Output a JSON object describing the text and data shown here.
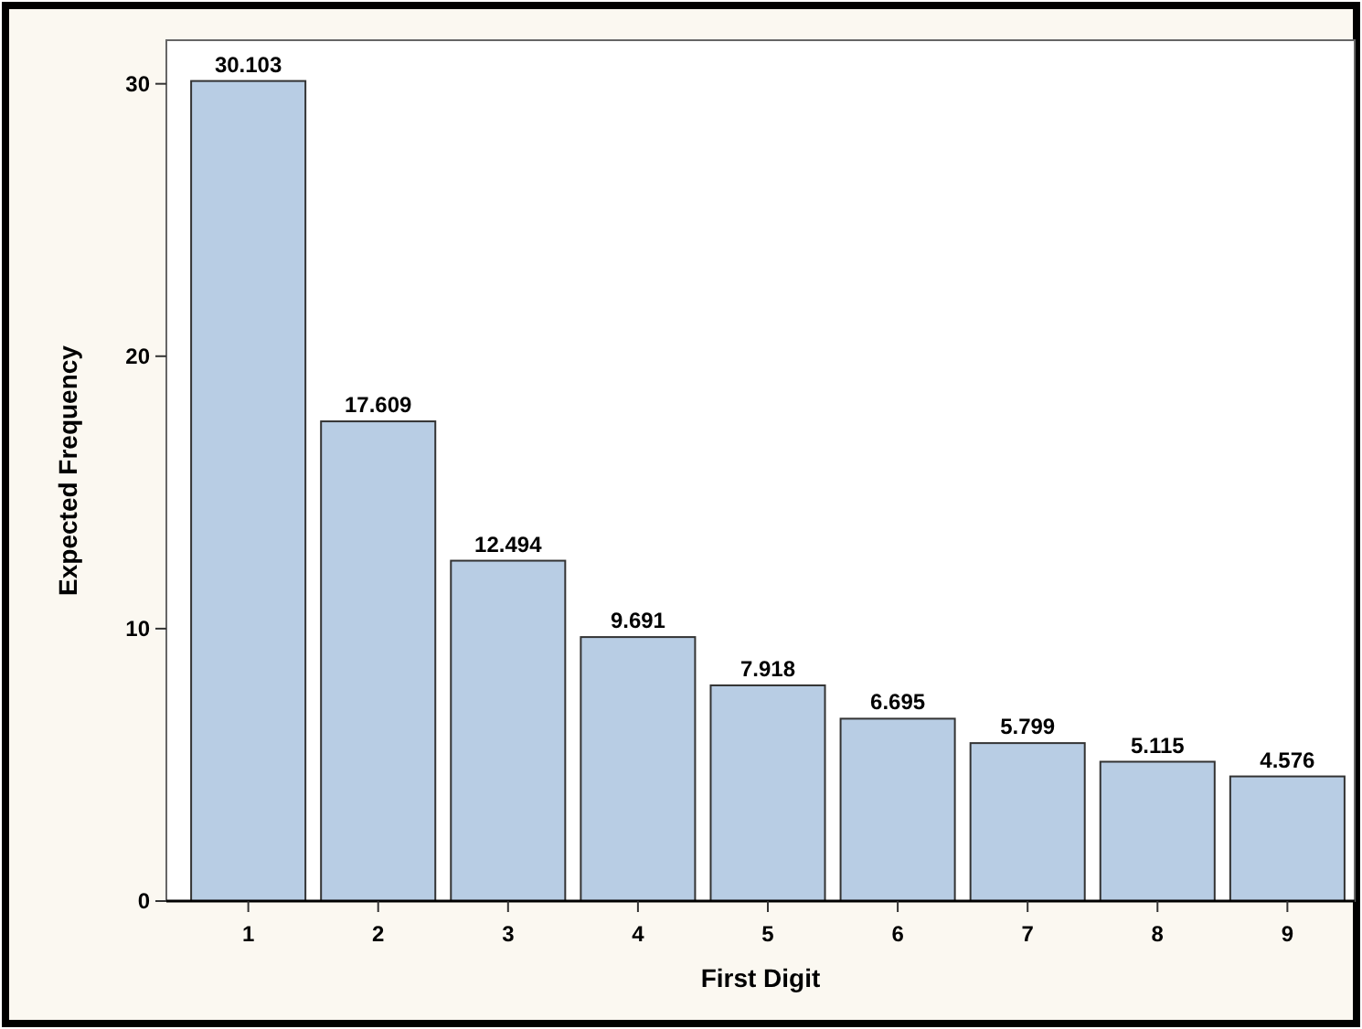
{
  "chart_data": {
    "type": "bar",
    "xlabel": "First Digit",
    "ylabel": "Expected Frequency",
    "categories": [
      "1",
      "2",
      "3",
      "4",
      "5",
      "6",
      "7",
      "8",
      "9"
    ],
    "values": [
      30.103,
      17.609,
      12.494,
      9.691,
      7.918,
      6.695,
      5.799,
      5.115,
      4.576
    ],
    "color": "#b8cde4",
    "ylim": [
      0,
      31.6
    ],
    "yticks": [
      0,
      10,
      20,
      30
    ],
    "grid": false,
    "data_labels": true
  }
}
